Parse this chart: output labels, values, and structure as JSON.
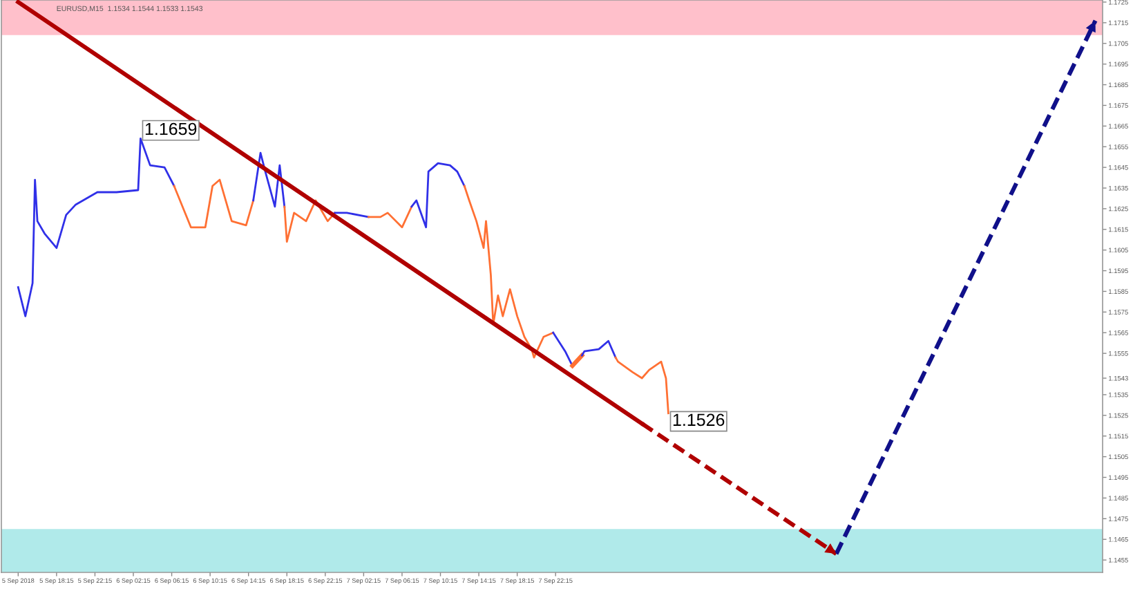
{
  "chart_data": {
    "type": "line",
    "xlim": [
      "2018-09-05T12:30",
      "2018-09-10T07:15"
    ],
    "ylim": [
      1.1449,
      1.1726
    ],
    "xticks": [
      {
        "value": "2018-09-05T14:15",
        "label": "5 Sep 2018"
      },
      {
        "value": "2018-09-05T18:15",
        "label": "5 Sep 18:15"
      },
      {
        "value": "2018-09-05T22:15",
        "label": "5 Sep 22:15"
      },
      {
        "value": "2018-09-06T02:15",
        "label": "6 Sep 02:15"
      },
      {
        "value": "2018-09-06T06:15",
        "label": "6 Sep 06:15"
      },
      {
        "value": "2018-09-06T10:15",
        "label": "6 Sep 10:15"
      },
      {
        "value": "2018-09-06T14:15",
        "label": "6 Sep 14:15"
      },
      {
        "value": "2018-09-06T18:15",
        "label": "6 Sep 18:15"
      },
      {
        "value": "2018-09-06T22:15",
        "label": "6 Sep 22:15"
      },
      {
        "value": "2018-09-07T02:15",
        "label": "7 Sep 02:15"
      },
      {
        "value": "2018-09-07T06:15",
        "label": "7 Sep 06:15"
      },
      {
        "value": "2018-09-07T10:15",
        "label": "7 Sep 10:15"
      },
      {
        "value": "2018-09-07T14:15",
        "label": "7 Sep 14:15"
      },
      {
        "value": "2018-09-07T18:15",
        "label": "7 Sep 18:15"
      },
      {
        "value": "2018-09-07T22:15",
        "label": "7 Sep 22:15"
      }
    ],
    "yticks": [
      1.1455,
      1.1465,
      1.1475,
      1.1485,
      1.1495,
      1.1505,
      1.1515,
      1.1525,
      1.1535,
      1.1543,
      1.1555,
      1.1565,
      1.1575,
      1.1585,
      1.1595,
      1.1605,
      1.1615,
      1.1625,
      1.1635,
      1.1645,
      1.1655,
      1.1665,
      1.1675,
      1.1685,
      1.1695,
      1.1705,
      1.1715,
      1.1725
    ],
    "grid": false,
    "legend": false,
    "line_style": "solid",
    "marker": "none",
    "bands": [
      {
        "axis": "y",
        "from": 1.1709,
        "to": 1.1726,
        "color": "#ffc0cb"
      },
      {
        "axis": "y",
        "from": 1.1449,
        "to": 1.147,
        "color": "#b0eaea"
      }
    ],
    "annotations": [
      "EURUSD,M15  1.1534 1.1544 1.1533 1.1543",
      {
        "text": "1.1659",
        "x": "2018-09-06T03:00",
        "y": 1.1659
      },
      {
        "text": "1.1526",
        "x": "2018-09-08T10:00",
        "y": 1.1526
      }
    ],
    "series": [
      {
        "color": "#3030e8",
        "x": [
          "2018-09-05T14:15",
          "2018-09-05T15:00",
          "2018-09-05T15:45",
          "2018-09-05T16:00",
          "2018-09-05T16:15",
          "2018-09-05T17:00",
          "2018-09-05T18:15",
          "2018-09-05T19:15",
          "2018-09-05T20:15",
          "2018-09-05T22:30",
          "2018-09-06T00:30",
          "2018-09-06T02:45",
          "2018-09-06T03:00",
          "2018-09-06T04:00",
          "2018-09-06T05:30",
          "2018-09-06T06:30"
        ],
        "values": [
          1.1587,
          1.1573,
          1.1589,
          1.1639,
          1.1619,
          1.1613,
          1.1606,
          1.1622,
          1.1627,
          1.1633,
          1.1633,
          1.1634,
          1.1659,
          1.1646,
          1.1645,
          1.1636
        ]
      },
      {
        "color": "#ff7033",
        "x": [
          "2018-09-06T06:30",
          "2018-09-06T08:15",
          "2018-09-06T09:45",
          "2018-09-06T10:30",
          "2018-09-06T11:15",
          "2018-09-06T12:30",
          "2018-09-06T14:00",
          "2018-09-06T14:45"
        ],
        "values": [
          1.1636,
          1.1616,
          1.1616,
          1.1636,
          1.1639,
          1.1619,
          1.1617,
          1.1629
        ]
      },
      {
        "color": "#3030e8",
        "x": [
          "2018-09-06T14:45",
          "2018-09-06T15:30",
          "2018-09-06T16:00",
          "2018-09-06T17:00",
          "2018-09-06T17:30",
          "2018-09-06T18:00"
        ],
        "values": [
          1.1629,
          1.1652,
          1.1643,
          1.1626,
          1.1646,
          1.1626
        ]
      },
      {
        "color": "#ff7033",
        "x": [
          "2018-09-06T18:00",
          "2018-09-06T18:15",
          "2018-09-06T19:00",
          "2018-09-06T20:15",
          "2018-09-06T21:15",
          "2018-09-06T22:30",
          "2018-09-06T23:15"
        ],
        "values": [
          1.1626,
          1.1609,
          1.1623,
          1.1619,
          1.1629,
          1.1619,
          1.1623
        ]
      },
      {
        "color": "#3030e8",
        "x": [
          "2018-09-06T23:15",
          "2018-09-07T00:30",
          "2018-09-07T02:45"
        ],
        "values": [
          1.1623,
          1.1623,
          1.1621
        ]
      },
      {
        "color": "#ff7033",
        "x": [
          "2018-09-07T02:45",
          "2018-09-07T04:00",
          "2018-09-07T04:45",
          "2018-09-07T06:15",
          "2018-09-07T07:15"
        ],
        "values": [
          1.1621,
          1.1621,
          1.1623,
          1.1616,
          1.1626
        ]
      },
      {
        "color": "#3030e8",
        "x": [
          "2018-09-07T07:15",
          "2018-09-07T07:45",
          "2018-09-07T08:45",
          "2018-09-07T09:00",
          "2018-09-07T10:00",
          "2018-09-07T11:15",
          "2018-09-07T12:00",
          "2018-09-07T12:45"
        ],
        "values": [
          1.1626,
          1.1629,
          1.1616,
          1.1643,
          1.1647,
          1.1646,
          1.1643,
          1.1636
        ]
      },
      {
        "color": "#ff7033",
        "x": [
          "2018-09-07T12:45",
          "2018-09-07T13:15",
          "2018-09-07T14:00",
          "2018-09-07T14:45",
          "2018-09-07T15:00",
          "2018-09-07T15:30",
          "2018-09-07T15:45",
          "2018-09-07T16:15",
          "2018-09-07T16:45",
          "2018-09-07T17:30",
          "2018-09-07T18:15",
          "2018-09-07T19:00",
          "2018-09-07T19:45",
          "2018-09-07T20:00",
          "2018-09-07T21:00",
          "2018-09-07T22:00"
        ],
        "values": [
          1.1636,
          1.1629,
          1.1619,
          1.1606,
          1.1619,
          1.1593,
          1.1569,
          1.1583,
          1.1573,
          1.1586,
          1.1573,
          1.1563,
          1.1557,
          1.1553,
          1.1563,
          1.1565
        ]
      },
      {
        "color": "#3030e8",
        "x": [
          "2018-09-07T22:00",
          "2018-09-07T23:15",
          "2018-09-08T00:00"
        ],
        "values": [
          1.1565,
          1.1556,
          1.1549
        ]
      },
      {
        "color": "#ff7033",
        "x": [
          "2018-09-08T00:00",
          "2018-09-08T01:00"
        ],
        "values": [
          1.1549,
          1.1554
        ]
      },
      {
        "color": "#3030e8",
        "x": [
          "2018-09-08T01:00",
          "2018-09-08T01:15",
          "2018-09-08T02:45",
          "2018-09-08T03:45",
          "2018-09-08T04:30"
        ],
        "values": [
          1.1554,
          1.1556,
          1.1557,
          1.1561,
          1.1553
        ]
      },
      {
        "color": "#ff7033",
        "x": [
          "2018-09-08T04:30",
          "2018-09-08T04:45",
          "2018-09-08T06:15",
          "2018-09-08T07:15",
          "2018-09-08T08:00",
          "2018-09-08T09:15",
          "2018-09-08T09:45",
          "2018-09-08T10:00"
        ],
        "values": [
          1.1553,
          1.1551,
          1.1546,
          1.1543,
          1.1547,
          1.1551,
          1.1543,
          1.1526
        ]
      },
      {
        "color": "#b00000",
        "x": [
          "2018-09-05T14:15",
          "2018-09-08T07:15"
        ],
        "values": [
          1.1725,
          1.1521
        ]
      },
      {
        "color": "#b00000",
        "line_style": "dashed",
        "x": [
          "2018-09-08T07:15",
          "2018-09-09T03:30"
        ],
        "values": [
          1.1521,
          1.1458
        ]
      },
      {
        "color": "#10108a",
        "line_style": "dashed",
        "x": [
          "2018-09-09T03:30",
          "2018-09-10T06:30"
        ],
        "values": [
          1.1458,
          1.1716
        ]
      }
    ]
  }
}
